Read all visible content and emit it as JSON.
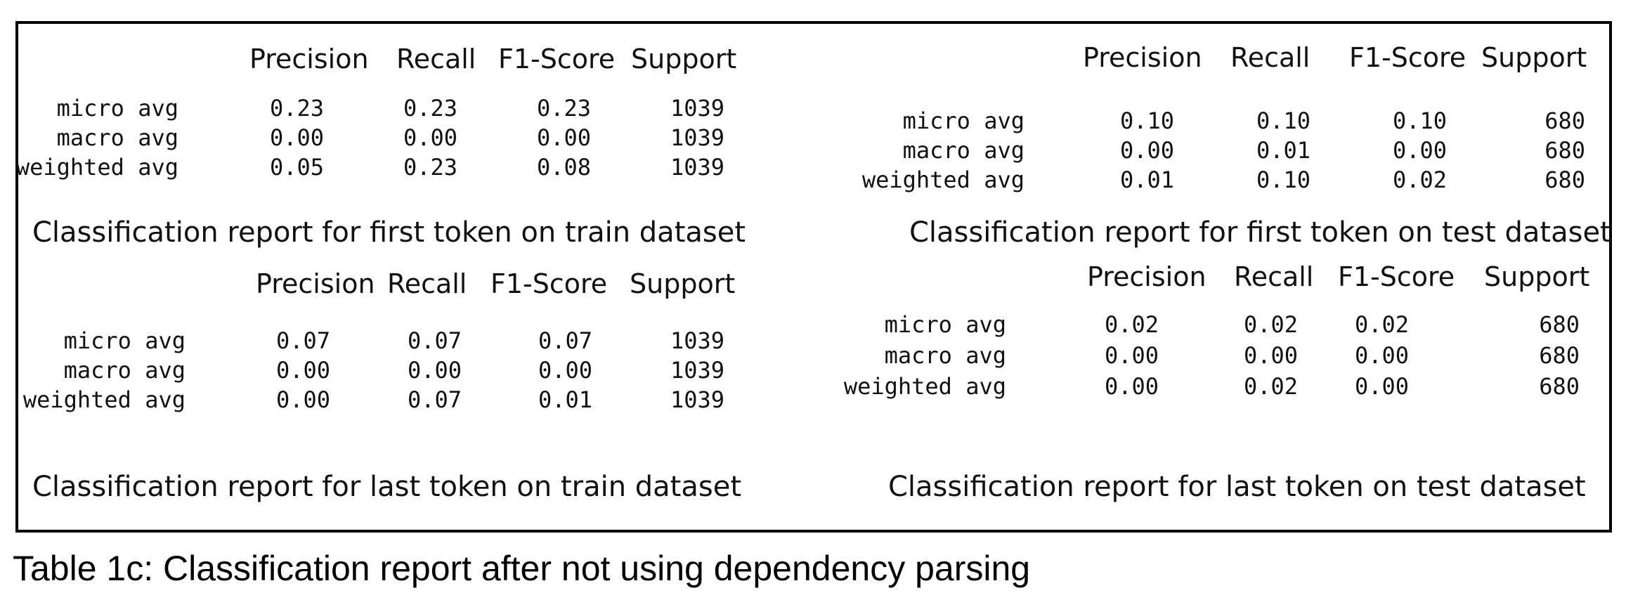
{
  "panels": [
    {
      "headers": [
        "Precision",
        "Recall",
        "F1-Score",
        "Support"
      ],
      "rows": [
        {
          "label": "micro avg",
          "values": [
            "0.23",
            "0.23",
            "0.23",
            "1039"
          ]
        },
        {
          "label": "macro avg",
          "values": [
            "0.00",
            "0.00",
            "0.00",
            "1039"
          ]
        },
        {
          "label": "weighted avg",
          "values": [
            "0.05",
            "0.23",
            "0.08",
            "1039"
          ]
        }
      ],
      "caption": "Classification report for first token on train dataset"
    },
    {
      "headers": [
        "Precision",
        "Recall",
        "F1-Score",
        "Support"
      ],
      "rows": [
        {
          "label": "micro avg",
          "values": [
            "0.10",
            "0.10",
            "0.10",
            "680"
          ]
        },
        {
          "label": "macro avg",
          "values": [
            "0.00",
            "0.01",
            "0.00",
            "680"
          ]
        },
        {
          "label": "weighted avg",
          "values": [
            "0.01",
            "0.10",
            "0.02",
            "680"
          ]
        }
      ],
      "caption": "Classification report for first token on test dataset"
    },
    {
      "headers": [
        "Precision",
        "Recall",
        "F1-Score",
        "Support"
      ],
      "rows": [
        {
          "label": "micro avg",
          "values": [
            "0.07",
            "0.07",
            "0.07",
            "1039"
          ]
        },
        {
          "label": "macro avg",
          "values": [
            "0.00",
            "0.00",
            "0.00",
            "1039"
          ]
        },
        {
          "label": "weighted avg",
          "values": [
            "0.00",
            "0.07",
            "0.01",
            "1039"
          ]
        }
      ],
      "caption": "Classification report for last token on train dataset"
    },
    {
      "headers": [
        "Precision",
        "Recall",
        "F1-Score",
        "Support"
      ],
      "rows": [
        {
          "label": "micro avg",
          "values": [
            "0.02",
            "0.02",
            "0.02",
            "680"
          ]
        },
        {
          "label": "macro avg",
          "values": [
            "0.00",
            "0.00",
            "0.00",
            "680"
          ]
        },
        {
          "label": "weighted avg",
          "values": [
            "0.00",
            "0.02",
            "0.00",
            "680"
          ]
        }
      ],
      "caption": "Classification report for last token on test dataset"
    }
  ],
  "table_caption": "Table 1c: Classification report after not using dependency parsing"
}
